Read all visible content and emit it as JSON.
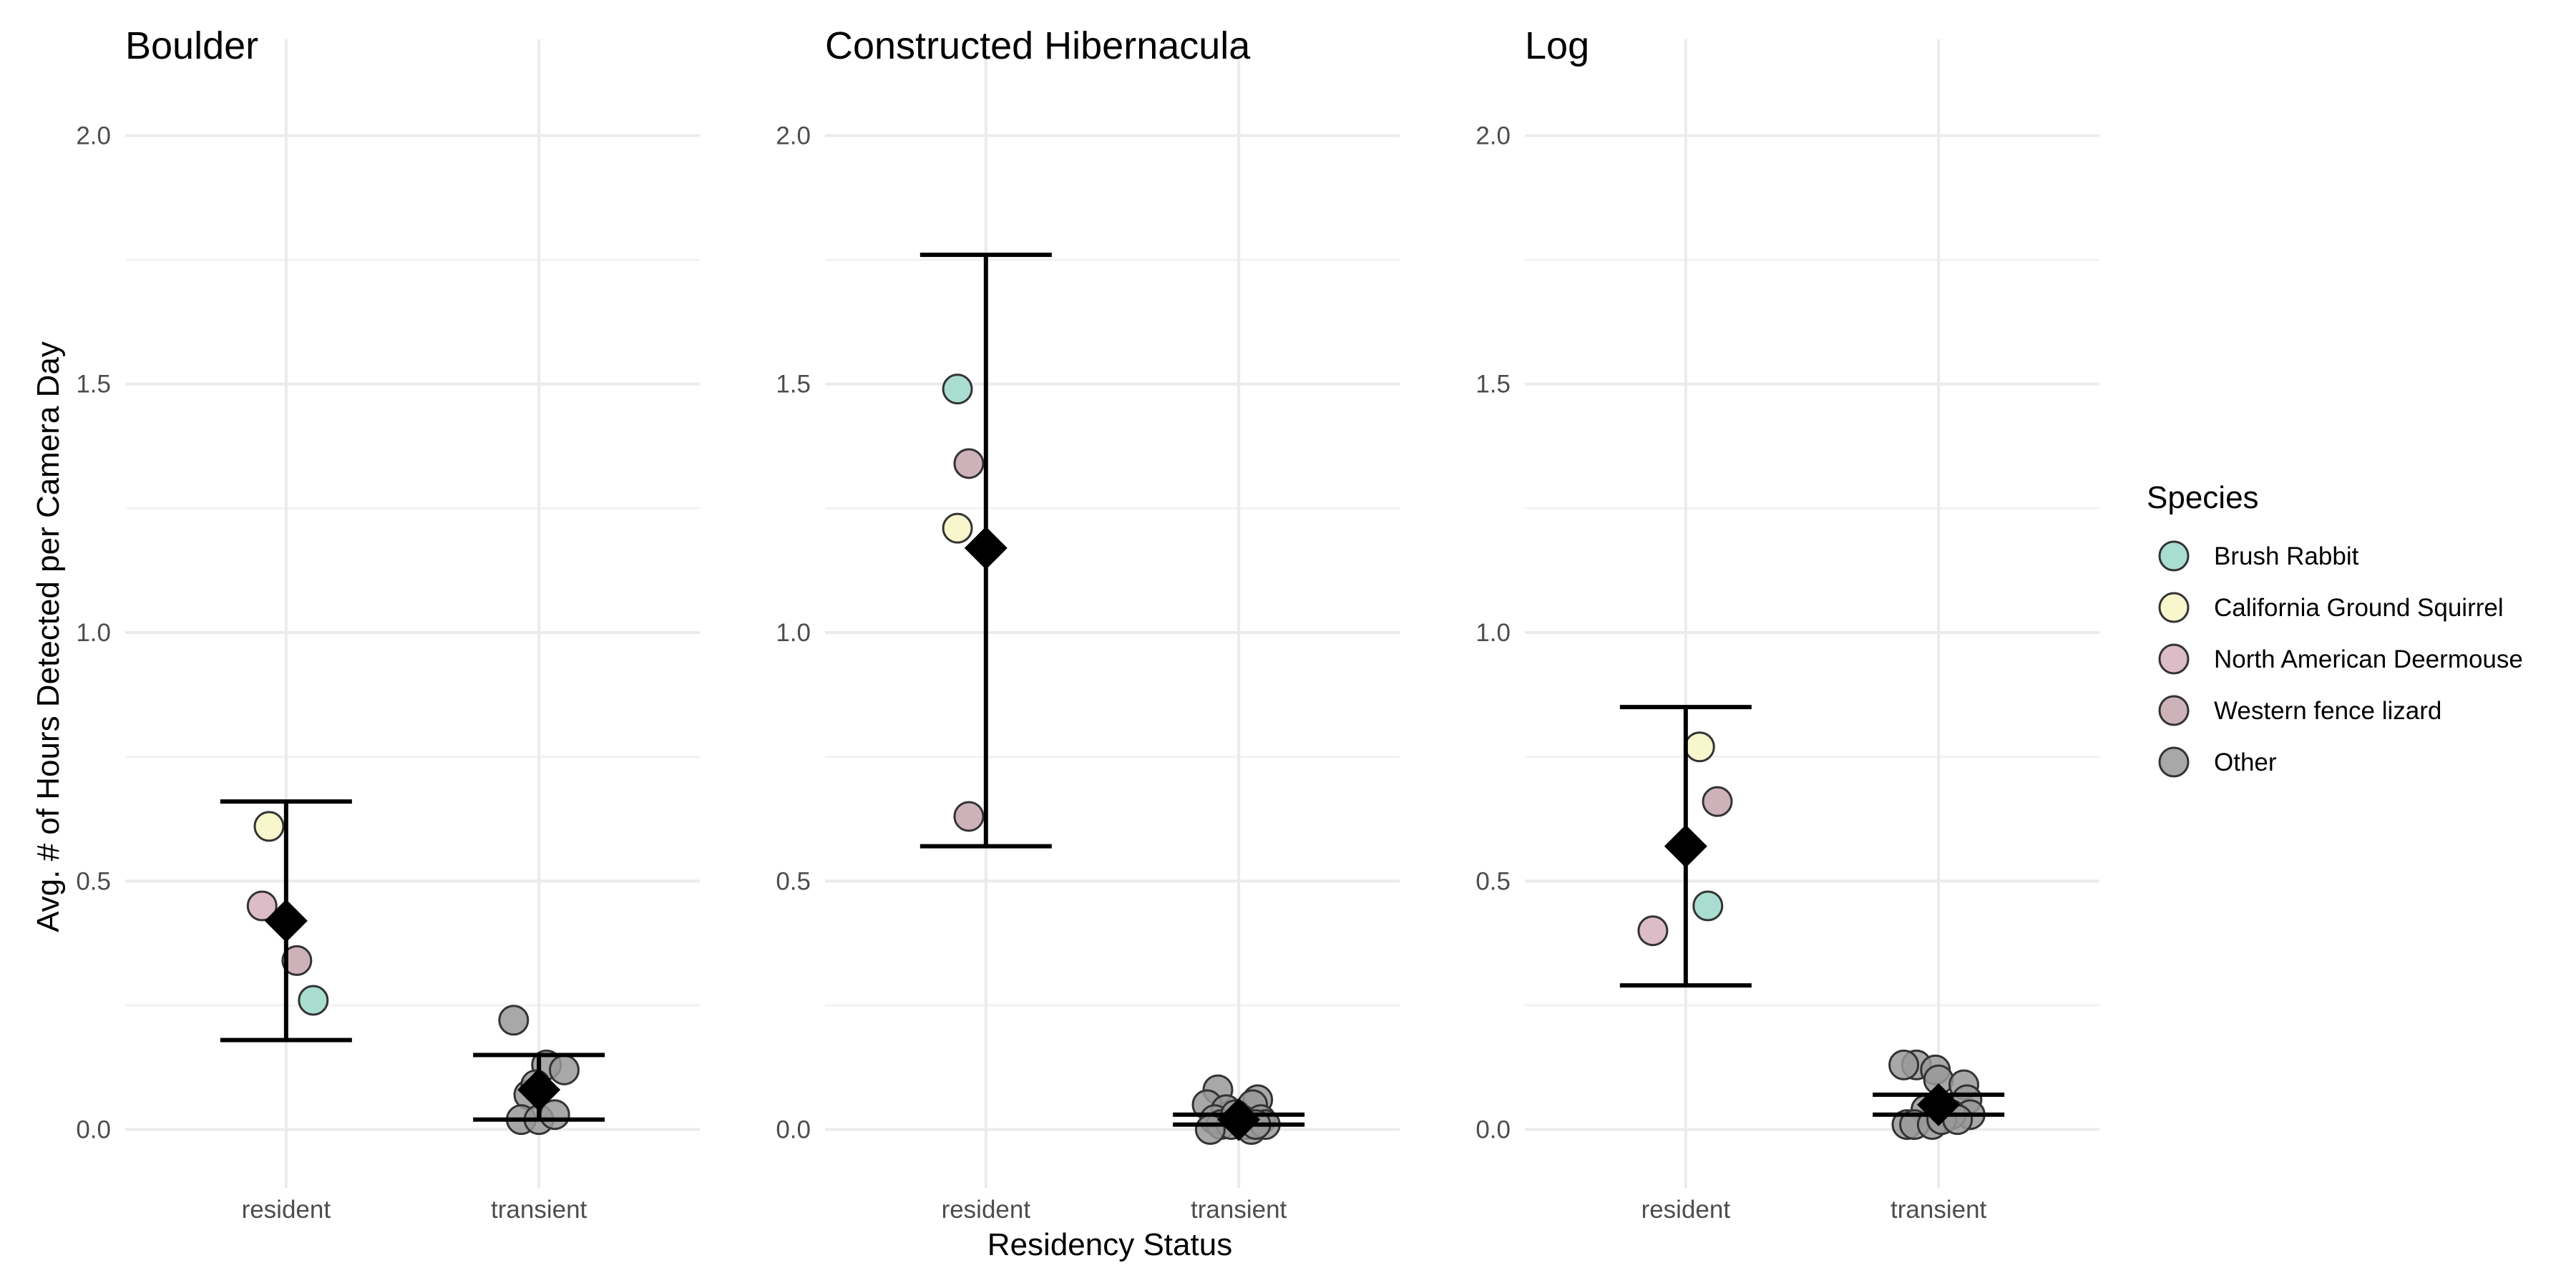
{
  "chart_data": {
    "type": "scatter",
    "xlabel": "Residency Status",
    "ylabel": "Avg. # of Hours Detected per Camera Day",
    "categories": [
      "resident",
      "transient"
    ],
    "ylim": [
      -0.1,
      2.1
    ],
    "yticks": [
      0.0,
      0.5,
      1.0,
      1.5,
      2.0
    ],
    "ytick_labels": [
      "0.0",
      "0.5",
      "1.0",
      "1.5",
      "2.0"
    ],
    "grid": true,
    "legend": {
      "title": "Species",
      "placement": "right",
      "entries": [
        {
          "name": "Brush Rabbit",
          "color": "#a8ddd0"
        },
        {
          "name": "California Ground Squirrel",
          "color": "#f8f6cc"
        },
        {
          "name": "North American Deermouse",
          "color": "#dcbcc6"
        },
        {
          "name": "Western fence lizard",
          "color": "#cdb2b9"
        },
        {
          "name": "Other",
          "color": "#999999"
        }
      ]
    },
    "panels": [
      {
        "title": "Boulder",
        "points": [
          {
            "category": "resident",
            "jitter": -0.27,
            "y": 0.61,
            "species": "California Ground Squirrel"
          },
          {
            "category": "resident",
            "jitter": -0.38,
            "y": 0.45,
            "species": "North American Deermouse"
          },
          {
            "category": "resident",
            "jitter": 0.17,
            "y": 0.34,
            "species": "Western fence lizard"
          },
          {
            "category": "resident",
            "jitter": 0.43,
            "y": 0.26,
            "species": "Brush Rabbit"
          },
          {
            "category": "transient",
            "jitter": -0.4,
            "y": 0.22,
            "species": "Other"
          },
          {
            "category": "transient",
            "jitter": 0.12,
            "y": 0.13,
            "species": "Other"
          },
          {
            "category": "transient",
            "jitter": 0.4,
            "y": 0.12,
            "species": "Other"
          },
          {
            "category": "transient",
            "jitter": -0.16,
            "y": 0.07,
            "species": "Other"
          },
          {
            "category": "transient",
            "jitter": -0.05,
            "y": 0.09,
            "species": "Other"
          },
          {
            "category": "transient",
            "jitter": -0.28,
            "y": 0.02,
            "species": "Other"
          },
          {
            "category": "transient",
            "jitter": 0.0,
            "y": 0.02,
            "species": "Other"
          },
          {
            "category": "transient",
            "jitter": 0.25,
            "y": 0.03,
            "species": "Other"
          }
        ],
        "summary": [
          {
            "category": "resident",
            "mean": 0.42,
            "lower": 0.18,
            "upper": 0.66
          },
          {
            "category": "transient",
            "mean": 0.08,
            "lower": 0.02,
            "upper": 0.15
          }
        ]
      },
      {
        "title": "Constructed Hibernacula",
        "points": [
          {
            "category": "resident",
            "jitter": -0.45,
            "y": 1.49,
            "species": "Brush Rabbit"
          },
          {
            "category": "resident",
            "jitter": -0.27,
            "y": 1.34,
            "species": "Western fence lizard"
          },
          {
            "category": "resident",
            "jitter": -0.45,
            "y": 1.21,
            "species": "California Ground Squirrel"
          },
          {
            "category": "resident",
            "jitter": -0.27,
            "y": 0.63,
            "species": "Western fence lizard"
          },
          {
            "category": "transient",
            "jitter": -0.33,
            "y": 0.08,
            "species": "Other"
          },
          {
            "category": "transient",
            "jitter": -0.5,
            "y": 0.05,
            "species": "Other"
          },
          {
            "category": "transient",
            "jitter": -0.2,
            "y": 0.04,
            "species": "Other"
          },
          {
            "category": "transient",
            "jitter": 0.3,
            "y": 0.06,
            "species": "Other"
          },
          {
            "category": "transient",
            "jitter": 0.22,
            "y": 0.05,
            "species": "Other"
          },
          {
            "category": "transient",
            "jitter": -0.38,
            "y": 0.02,
            "species": "Other"
          },
          {
            "category": "transient",
            "jitter": -0.28,
            "y": 0.01,
            "species": "Other"
          },
          {
            "category": "transient",
            "jitter": -0.12,
            "y": 0.01,
            "species": "Other"
          },
          {
            "category": "transient",
            "jitter": -0.05,
            "y": 0.03,
            "species": "Other"
          },
          {
            "category": "transient",
            "jitter": 0.05,
            "y": 0.02,
            "species": "Other"
          },
          {
            "category": "transient",
            "jitter": 0.12,
            "y": 0.01,
            "species": "Other"
          },
          {
            "category": "transient",
            "jitter": 0.2,
            "y": 0.0,
            "species": "Other"
          },
          {
            "category": "transient",
            "jitter": 0.35,
            "y": 0.02,
            "species": "Other"
          },
          {
            "category": "transient",
            "jitter": 0.42,
            "y": 0.01,
            "species": "Other"
          },
          {
            "category": "transient",
            "jitter": -0.45,
            "y": 0.0,
            "species": "Other"
          },
          {
            "category": "transient",
            "jitter": 0.27,
            "y": 0.01,
            "species": "Other"
          }
        ],
        "summary": [
          {
            "category": "resident",
            "mean": 1.17,
            "lower": 0.57,
            "upper": 1.76
          },
          {
            "category": "transient",
            "mean": 0.02,
            "lower": 0.01,
            "upper": 0.03
          }
        ]
      },
      {
        "title": "Log",
        "points": [
          {
            "category": "resident",
            "jitter": -0.52,
            "y": 0.4,
            "species": "North American Deermouse"
          },
          {
            "category": "resident",
            "jitter": 0.22,
            "y": 0.77,
            "species": "California Ground Squirrel"
          },
          {
            "category": "resident",
            "jitter": 0.5,
            "y": 0.66,
            "species": "Western fence lizard"
          },
          {
            "category": "resident",
            "jitter": 0.35,
            "y": 0.45,
            "species": "Brush Rabbit"
          },
          {
            "category": "transient",
            "jitter": -0.35,
            "y": 0.13,
            "species": "Other"
          },
          {
            "category": "transient",
            "jitter": -0.55,
            "y": 0.13,
            "species": "Other"
          },
          {
            "category": "transient",
            "jitter": -0.05,
            "y": 0.12,
            "species": "Other"
          },
          {
            "category": "transient",
            "jitter": 0.0,
            "y": 0.1,
            "species": "Other"
          },
          {
            "category": "transient",
            "jitter": 0.4,
            "y": 0.09,
            "species": "Other"
          },
          {
            "category": "transient",
            "jitter": 0.45,
            "y": 0.06,
            "species": "Other"
          },
          {
            "category": "transient",
            "jitter": 0.5,
            "y": 0.03,
            "species": "Other"
          },
          {
            "category": "transient",
            "jitter": -0.2,
            "y": 0.04,
            "species": "Other"
          },
          {
            "category": "transient",
            "jitter": 0.2,
            "y": 0.03,
            "species": "Other"
          },
          {
            "category": "transient",
            "jitter": -0.5,
            "y": 0.01,
            "species": "Other"
          },
          {
            "category": "transient",
            "jitter": -0.38,
            "y": 0.01,
            "species": "Other"
          },
          {
            "category": "transient",
            "jitter": -0.1,
            "y": 0.01,
            "species": "Other"
          },
          {
            "category": "transient",
            "jitter": 0.05,
            "y": 0.02,
            "species": "Other"
          },
          {
            "category": "transient",
            "jitter": 0.3,
            "y": 0.02,
            "species": "Other"
          }
        ],
        "summary": [
          {
            "category": "resident",
            "mean": 0.57,
            "lower": 0.29,
            "upper": 0.85
          },
          {
            "category": "transient",
            "mean": 0.05,
            "lower": 0.03,
            "upper": 0.07
          }
        ]
      }
    ]
  }
}
